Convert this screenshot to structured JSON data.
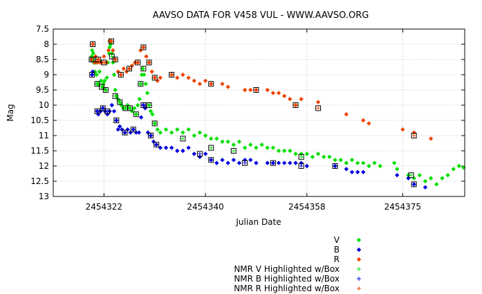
{
  "chart_data": {
    "type": "scatter",
    "title": "AAVSO DATA FOR V458 VUL - WWW.AAVSO.ORG",
    "xlabel": "Julian Date",
    "ylabel": "Mag",
    "xlim": [
      2454313,
      2454386
    ],
    "ylim": [
      7.5,
      13
    ],
    "y_inverted": true,
    "grid": true,
    "x_ticks": [
      2454322,
      2454340,
      2454358,
      2454375
    ],
    "x_tick_labels": [
      "2454322",
      "2454340",
      "2454358",
      "2454375"
    ],
    "y_ticks": [
      7.5,
      8,
      8.5,
      9,
      9.5,
      10,
      10.5,
      11,
      11.5,
      12,
      12.5,
      13
    ],
    "y_tick_labels": [
      "7.5",
      "8",
      "8.5",
      "9",
      "9.5",
      "10",
      "10.5",
      "11",
      "11.5",
      "12",
      "12.5",
      "13"
    ],
    "legend_position": "bottom-right",
    "series": [
      {
        "name": "V",
        "marker": "diamond",
        "color": "#00e000",
        "points": [
          [
            2454319.8,
            8.4
          ],
          [
            2454319.9,
            8.2
          ],
          [
            2454320.0,
            8.5
          ],
          [
            2454320.1,
            8.3
          ],
          [
            2454320.2,
            8.6
          ],
          [
            2454320.4,
            8.9
          ],
          [
            2454320.5,
            8.6
          ],
          [
            2454320.7,
            9.0
          ],
          [
            2454320.8,
            9.3
          ],
          [
            2454321.0,
            9.3
          ],
          [
            2454321.2,
            8.9
          ],
          [
            2454321.5,
            9.2
          ],
          [
            2454321.7,
            9.4
          ],
          [
            2454321.9,
            9.3
          ],
          [
            2454322.1,
            9.2
          ],
          [
            2454322.3,
            9.5
          ],
          [
            2454322.5,
            9.1
          ],
          [
            2454322.7,
            8.6
          ],
          [
            2454322.9,
            8.3
          ],
          [
            2454323.0,
            8.1
          ],
          [
            2454323.2,
            8.0
          ],
          [
            2454323.4,
            8.3
          ],
          [
            2454323.6,
            8.6
          ],
          [
            2454323.8,
            9.0
          ],
          [
            2454324.0,
            9.5
          ],
          [
            2454324.2,
            9.7
          ],
          [
            2454324.5,
            9.8
          ],
          [
            2454324.8,
            9.9
          ],
          [
            2454325.1,
            10.0
          ],
          [
            2454325.4,
            10.1
          ],
          [
            2454325.8,
            10.1
          ],
          [
            2454326.2,
            10.0
          ],
          [
            2454326.6,
            10.1
          ],
          [
            2454327.0,
            10.2
          ],
          [
            2454327.4,
            10.1
          ],
          [
            2454327.7,
            10.3
          ],
          [
            2454328.0,
            10.0
          ],
          [
            2454328.3,
            9.8
          ],
          [
            2454328.5,
            9.3
          ],
          [
            2454328.7,
            9.0
          ],
          [
            2454328.9,
            8.8
          ],
          [
            2454329.1,
            9.0
          ],
          [
            2454329.4,
            9.3
          ],
          [
            2454329.7,
            9.6
          ],
          [
            2454330.0,
            10.0
          ],
          [
            2454330.3,
            10.2
          ],
          [
            2454330.6,
            10.3
          ],
          [
            2454331.0,
            10.6
          ],
          [
            2454331.5,
            10.8
          ],
          [
            2454332.0,
            10.9
          ],
          [
            2454333.0,
            10.8
          ],
          [
            2454334.0,
            10.9
          ],
          [
            2454335.0,
            10.8
          ],
          [
            2454336.0,
            10.9
          ],
          [
            2454337.0,
            10.8
          ],
          [
            2454338.0,
            11.0
          ],
          [
            2454339.0,
            10.9
          ],
          [
            2454340.0,
            11.0
          ],
          [
            2454341.0,
            11.1
          ],
          [
            2454342.0,
            11.1
          ],
          [
            2454343.0,
            11.2
          ],
          [
            2454344.0,
            11.2
          ],
          [
            2454345.0,
            11.3
          ],
          [
            2454346.0,
            11.2
          ],
          [
            2454347.0,
            11.4
          ],
          [
            2454348.0,
            11.3
          ],
          [
            2454349.0,
            11.4
          ],
          [
            2454350.0,
            11.3
          ],
          [
            2454351.0,
            11.4
          ],
          [
            2454352.0,
            11.4
          ],
          [
            2454353.0,
            11.5
          ],
          [
            2454354.0,
            11.5
          ],
          [
            2454355.0,
            11.5
          ],
          [
            2454356.0,
            11.6
          ],
          [
            2454357.0,
            11.6
          ],
          [
            2454358.0,
            11.6
          ],
          [
            2454359.0,
            11.7
          ],
          [
            2454360.0,
            11.6
          ],
          [
            2454361.0,
            11.7
          ],
          [
            2454362.0,
            11.7
          ],
          [
            2454363.0,
            11.8
          ],
          [
            2454364.0,
            11.8
          ],
          [
            2454365.0,
            11.9
          ],
          [
            2454366.0,
            11.8
          ],
          [
            2454367.0,
            11.9
          ],
          [
            2454368.0,
            11.9
          ],
          [
            2454369.0,
            12.0
          ],
          [
            2454370.0,
            11.9
          ],
          [
            2454371.0,
            12.0
          ],
          [
            2454373.5,
            11.9
          ],
          [
            2454374.0,
            12.1
          ],
          [
            2454376.0,
            12.3
          ],
          [
            2454377.0,
            12.4
          ],
          [
            2454378.0,
            12.3
          ],
          [
            2454379.0,
            12.5
          ],
          [
            2454380.0,
            12.4
          ],
          [
            2454381.0,
            12.6
          ],
          [
            2454382.0,
            12.4
          ],
          [
            2454383.0,
            12.3
          ],
          [
            2454384.0,
            12.1
          ],
          [
            2454385.0,
            12.0
          ],
          [
            2454385.8,
            12.05
          ]
        ]
      },
      {
        "name": "B",
        "marker": "diamond",
        "color": "#0000dd",
        "points": [
          [
            2454319.9,
            9.0
          ],
          [
            2454320.0,
            8.9
          ],
          [
            2454320.8,
            10.2
          ],
          [
            2454321.0,
            10.3
          ],
          [
            2454321.4,
            10.2
          ],
          [
            2454321.8,
            10.1
          ],
          [
            2454322.2,
            10.2
          ],
          [
            2454322.6,
            10.3
          ],
          [
            2454323.0,
            10.2
          ],
          [
            2454323.4,
            10.0
          ],
          [
            2454323.8,
            10.2
          ],
          [
            2454324.2,
            10.5
          ],
          [
            2454324.5,
            10.8
          ],
          [
            2454324.8,
            10.7
          ],
          [
            2454325.2,
            10.8
          ],
          [
            2454325.7,
            10.9
          ],
          [
            2454326.2,
            10.8
          ],
          [
            2454326.7,
            10.9
          ],
          [
            2454327.2,
            10.8
          ],
          [
            2454327.7,
            10.9
          ],
          [
            2454328.2,
            10.9
          ],
          [
            2454328.6,
            10.4
          ],
          [
            2454329.0,
            10.0
          ],
          [
            2454329.3,
            10.1
          ],
          [
            2454329.8,
            10.9
          ],
          [
            2454330.3,
            11.0
          ],
          [
            2454330.8,
            11.2
          ],
          [
            2454331.3,
            11.3
          ],
          [
            2454332.0,
            11.4
          ],
          [
            2454333.0,
            11.4
          ],
          [
            2454334.0,
            11.4
          ],
          [
            2454335.0,
            11.5
          ],
          [
            2454336.0,
            11.5
          ],
          [
            2454337.0,
            11.4
          ],
          [
            2454338.0,
            11.6
          ],
          [
            2454339.0,
            11.7
          ],
          [
            2454340.0,
            11.6
          ],
          [
            2454341.0,
            11.8
          ],
          [
            2454342.0,
            11.9
          ],
          [
            2454343.0,
            11.8
          ],
          [
            2454344.0,
            11.9
          ],
          [
            2454345.0,
            11.8
          ],
          [
            2454346.0,
            11.9
          ],
          [
            2454347.0,
            11.8
          ],
          [
            2454348.0,
            11.8
          ],
          [
            2454349.0,
            11.9
          ],
          [
            2454351.0,
            11.9
          ],
          [
            2454352.0,
            11.9
          ],
          [
            2454353.0,
            11.9
          ],
          [
            2454354.0,
            11.9
          ],
          [
            2454355.0,
            11.9
          ],
          [
            2454356.0,
            11.9
          ],
          [
            2454357.0,
            11.9
          ],
          [
            2454358.0,
            12.0
          ],
          [
            2454363.0,
            12.0
          ],
          [
            2454365.0,
            12.1
          ],
          [
            2454366.0,
            12.2
          ],
          [
            2454367.0,
            12.2
          ],
          [
            2454368.0,
            12.2
          ],
          [
            2454374.0,
            12.3
          ],
          [
            2454376.0,
            12.4
          ],
          [
            2454377.0,
            12.6
          ],
          [
            2454379.0,
            12.7
          ]
        ]
      },
      {
        "name": "R",
        "marker": "diamond",
        "color": "#ee4400",
        "points": [
          [
            2454319.8,
            8.5
          ],
          [
            2454320.0,
            8.0
          ],
          [
            2454320.3,
            8.6
          ],
          [
            2454320.5,
            8.4
          ],
          [
            2454320.8,
            8.6
          ],
          [
            2454321.0,
            8.5
          ],
          [
            2454321.3,
            8.6
          ],
          [
            2454321.6,
            8.6
          ],
          [
            2454322.0,
            8.4
          ],
          [
            2454322.4,
            8.6
          ],
          [
            2454322.8,
            8.2
          ],
          [
            2454323.0,
            7.9
          ],
          [
            2454323.3,
            7.9
          ],
          [
            2454323.6,
            8.2
          ],
          [
            2454324.0,
            8.5
          ],
          [
            2454324.5,
            8.9
          ],
          [
            2454325.0,
            9.0
          ],
          [
            2454325.5,
            8.8
          ],
          [
            2454326.0,
            8.9
          ],
          [
            2454326.5,
            8.8
          ],
          [
            2454327.0,
            8.7
          ],
          [
            2454327.5,
            8.6
          ],
          [
            2454328.0,
            8.6
          ],
          [
            2454328.5,
            8.2
          ],
          [
            2454329.0,
            8.1
          ],
          [
            2454329.5,
            8.4
          ],
          [
            2454330.0,
            8.6
          ],
          [
            2454330.5,
            8.9
          ],
          [
            2454331.0,
            9.1
          ],
          [
            2454331.5,
            9.2
          ],
          [
            2454332.0,
            9.1
          ],
          [
            2454334.0,
            9.0
          ],
          [
            2454335.0,
            9.1
          ],
          [
            2454336.0,
            9.0
          ],
          [
            2454337.0,
            9.1
          ],
          [
            2454338.0,
            9.2
          ],
          [
            2454339.0,
            9.3
          ],
          [
            2454340.0,
            9.2
          ],
          [
            2454341.0,
            9.3
          ],
          [
            2454343.0,
            9.3
          ],
          [
            2454344.0,
            9.4
          ],
          [
            2454347.0,
            9.5
          ],
          [
            2454348.0,
            9.5
          ],
          [
            2454349.0,
            9.5
          ],
          [
            2454351.0,
            9.5
          ],
          [
            2454352.0,
            9.6
          ],
          [
            2454353.0,
            9.6
          ],
          [
            2454354.0,
            9.7
          ],
          [
            2454355.0,
            9.8
          ],
          [
            2454356.0,
            10.0
          ],
          [
            2454357.0,
            9.8
          ],
          [
            2454360.0,
            9.9
          ],
          [
            2454365.0,
            10.3
          ],
          [
            2454368.0,
            10.5
          ],
          [
            2454369.0,
            10.6
          ],
          [
            2454375.0,
            10.8
          ],
          [
            2454377.0,
            10.9
          ],
          [
            2454380.0,
            11.1
          ]
        ]
      },
      {
        "name": "NMR V Highlighted w/Box",
        "marker": "plus",
        "color": "#00e000",
        "points": [
          [
            2454320.1,
            8.5
          ],
          [
            2454320.8,
            9.3
          ],
          [
            2454321.6,
            9.4
          ],
          [
            2454322.3,
            9.5
          ],
          [
            2454323.4,
            8.4
          ],
          [
            2454324.0,
            9.7
          ],
          [
            2454324.8,
            9.9
          ],
          [
            2454325.8,
            10.1
          ],
          [
            2454326.6,
            10.1
          ],
          [
            2454327.7,
            10.3
          ],
          [
            2454328.5,
            9.3
          ],
          [
            2454329.0,
            8.8
          ],
          [
            2454330.0,
            10.0
          ],
          [
            2454331.0,
            10.6
          ],
          [
            2454336.0,
            11.1
          ],
          [
            2454341.0,
            11.4
          ],
          [
            2454345.0,
            11.5
          ],
          [
            2454357.0,
            11.7
          ],
          [
            2454376.5,
            12.3
          ]
        ]
      },
      {
        "name": "NMR B Highlighted w/Box",
        "marker": "plus",
        "color": "#0000dd",
        "points": [
          [
            2454319.9,
            9.0
          ],
          [
            2454320.8,
            10.2
          ],
          [
            2454321.8,
            10.1
          ],
          [
            2454322.6,
            10.2
          ],
          [
            2454324.2,
            10.5
          ],
          [
            2454325.7,
            10.9
          ],
          [
            2454327.2,
            10.8
          ],
          [
            2454329.0,
            10.0
          ],
          [
            2454330.3,
            11.0
          ],
          [
            2454331.3,
            11.3
          ],
          [
            2454339.0,
            11.6
          ],
          [
            2454341.0,
            11.8
          ],
          [
            2454347.0,
            11.9
          ],
          [
            2454352.0,
            11.9
          ],
          [
            2454357.0,
            12.0
          ],
          [
            2454363.0,
            12.0
          ],
          [
            2454377.0,
            12.6
          ]
        ]
      },
      {
        "name": "NMR R Highlighted w/Box",
        "marker": "plus",
        "color": "#ee4400",
        "points": [
          [
            2454319.8,
            8.5
          ],
          [
            2454320.0,
            8.0
          ],
          [
            2454321.0,
            8.5
          ],
          [
            2454322.0,
            8.6
          ],
          [
            2454323.3,
            7.9
          ],
          [
            2454324.0,
            8.5
          ],
          [
            2454325.0,
            9.0
          ],
          [
            2454326.5,
            8.8
          ],
          [
            2454328.0,
            8.6
          ],
          [
            2454329.0,
            8.1
          ],
          [
            2454330.0,
            8.6
          ],
          [
            2454331.0,
            9.1
          ],
          [
            2454334.0,
            9.0
          ],
          [
            2454341.0,
            9.3
          ],
          [
            2454349.0,
            9.5
          ],
          [
            2454356.0,
            10.0
          ],
          [
            2454360.0,
            10.1
          ],
          [
            2454377.0,
            11.0
          ]
        ]
      }
    ]
  }
}
